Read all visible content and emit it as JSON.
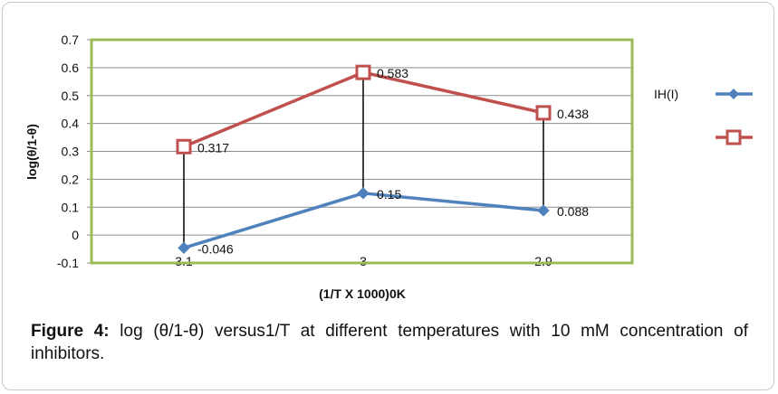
{
  "chart_data": {
    "type": "line",
    "categories": [
      "3.1",
      "3",
      "2.9"
    ],
    "xlabel": "(1/T X 1000)0K",
    "ylabel": "log(θ/1-θ)",
    "ylim": [
      -0.1,
      0.7
    ],
    "yticks": [
      "0.7",
      "0.6",
      "0.5",
      "0.4",
      "0.3",
      "0.2",
      "0.1",
      "0",
      "-0.1"
    ],
    "grid": true,
    "legend_position": "right",
    "series": [
      {
        "name": "IH(I)",
        "values": [
          -0.046,
          0.15,
          0.088
        ],
        "labels": [
          "-0.046",
          "0.15",
          "0.088"
        ],
        "color": "#4f81bd",
        "marker": "diamond"
      },
      {
        "values": [
          0.317,
          0.583,
          0.438
        ],
        "labels": [
          "0.317",
          "0.583",
          "0.438"
        ],
        "color": "#c0504d",
        "marker": "square-open"
      }
    ],
    "plot_border_color": "#9bbb59"
  },
  "caption": {
    "prefix": "Figure 4:",
    "text": " log (θ/1-θ) versus1/T at different temperatures with 10 mM concentration of inhibitors."
  }
}
